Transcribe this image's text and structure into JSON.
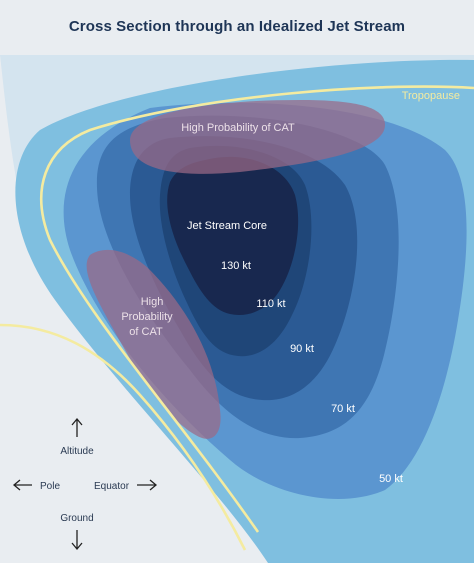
{
  "title": "Cross Section through an Idealized Jet Stream",
  "labels": {
    "tropopause": "Tropopause",
    "cat_top": "High Probability of CAT",
    "cat_left_line1": "High",
    "cat_left_line2": "Probability",
    "cat_left_line3": "of CAT",
    "core": "Jet Stream Core",
    "kt130": "130 kt",
    "kt110": "110 kt",
    "kt90": "90 kt",
    "kt70": "70 kt",
    "kt50": "50 kt"
  },
  "legend": {
    "altitude": "Altitude",
    "pole": "Pole",
    "equator": "Equator",
    "ground": "Ground"
  },
  "colors": {
    "sky": "#e9edf1",
    "band_outer": "#7fbfe0",
    "kt50": "#5b96d0",
    "kt70": "#3f76b3",
    "kt90": "#2b5a94",
    "kt110": "#1f4678",
    "core": "#18284f",
    "cat": "#9b6a86",
    "tropopause": "#f4eba0"
  }
}
